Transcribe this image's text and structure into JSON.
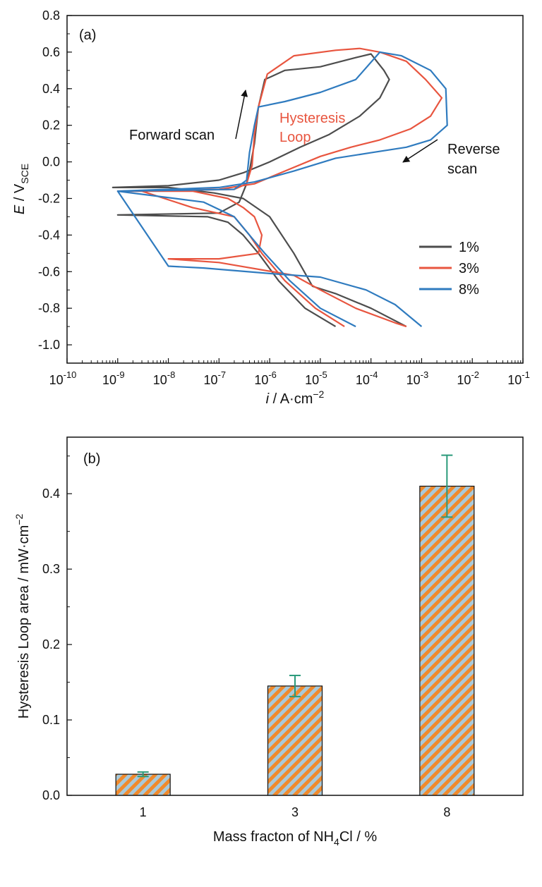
{
  "chart_data": [
    {
      "type": "line",
      "panel_label": "(a)",
      "xscale": "log",
      "xlim_exp": [
        -10,
        -1
      ],
      "x_tick_exponents": [
        -10,
        -9,
        -8,
        -7,
        -6,
        -5,
        -4,
        -3,
        -2,
        -1
      ],
      "x_tick_base": "10",
      "ylim": [
        -1.1,
        0.8
      ],
      "y_ticks": [
        "0.8",
        "0.6",
        "0.4",
        "0.2",
        "0.0",
        "-0.2",
        "-0.4",
        "-0.6",
        "-0.8",
        "-1.0"
      ],
      "xlabel": {
        "var": "i",
        "rest": " / A·cm",
        "sup": "−2"
      },
      "ylabel": {
        "var": "E",
        "rest": " / V",
        "sub": "SCE"
      },
      "annotations": {
        "forward": "Forward scan",
        "hysteresis_1": "Hysteresis",
        "hysteresis_2": "Loop",
        "reverse_1": "Reverse",
        "reverse_2": "scan"
      },
      "colors": {
        "1%": "#4d4d4d",
        "3%": "#e8553f",
        "8%": "#2f7bbf"
      },
      "series": [
        {
          "name": "1%",
          "color": "#4d4d4d",
          "points": [
            [
              2e-05,
              -0.9
            ],
            [
              5e-06,
              -0.8
            ],
            [
              1.5e-06,
              -0.65
            ],
            [
              6e-07,
              -0.5
            ],
            [
              3e-07,
              -0.4
            ],
            [
              1.5e-07,
              -0.33
            ],
            [
              6e-08,
              -0.3
            ],
            [
              1e-09,
              -0.29
            ],
            [
              1e-07,
              -0.28
            ],
            [
              2.5e-07,
              -0.22
            ],
            [
              3.5e-07,
              -0.12
            ],
            [
              4e-07,
              -0.05
            ],
            [
              5e-07,
              0.1
            ],
            [
              6e-07,
              0.3
            ],
            [
              8e-07,
              0.45
            ],
            [
              2e-06,
              0.5
            ],
            [
              1e-05,
              0.52
            ],
            [
              5e-05,
              0.57
            ],
            [
              0.0001,
              0.59
            ],
            [
              0.00013,
              0.55
            ],
            [
              0.00018,
              0.5
            ],
            [
              0.00023,
              0.45
            ],
            [
              0.00015,
              0.35
            ],
            [
              6e-05,
              0.25
            ],
            [
              1.5e-05,
              0.15
            ],
            [
              4e-06,
              0.08
            ],
            [
              1e-06,
              0.0
            ],
            [
              3e-07,
              -0.06
            ],
            [
              1e-07,
              -0.1
            ],
            [
              1e-08,
              -0.13
            ],
            [
              8e-10,
              -0.14
            ],
            [
              1e-08,
              -0.14
            ],
            [
              8e-08,
              -0.17
            ],
            [
              3e-07,
              -0.2
            ],
            [
              1e-06,
              -0.3
            ],
            [
              3e-06,
              -0.5
            ],
            [
              7e-06,
              -0.68
            ],
            [
              2e-05,
              -0.72
            ],
            [
              0.0001,
              -0.8
            ],
            [
              0.0005,
              -0.9
            ]
          ]
        },
        {
          "name": "3%",
          "color": "#e8553f",
          "points": [
            [
              3e-05,
              -0.9
            ],
            [
              8e-06,
              -0.8
            ],
            [
              2e-06,
              -0.65
            ],
            [
              7e-07,
              -0.5
            ],
            [
              4e-07,
              -0.4
            ],
            [
              2e-07,
              -0.3
            ],
            [
              3e-08,
              -0.25
            ],
            [
              3e-09,
              -0.16
            ],
            [
              2e-07,
              -0.15
            ],
            [
              3.5e-07,
              -0.12
            ],
            [
              4.5e-07,
              -0.02
            ],
            [
              5e-07,
              0.15
            ],
            [
              6e-07,
              0.3
            ],
            [
              9e-07,
              0.48
            ],
            [
              3e-06,
              0.58
            ],
            [
              2e-05,
              0.61
            ],
            [
              6e-05,
              0.62
            ],
            [
              0.00015,
              0.6
            ],
            [
              0.0005,
              0.55
            ],
            [
              0.0012,
              0.45
            ],
            [
              0.0025,
              0.35
            ],
            [
              0.0015,
              0.25
            ],
            [
              0.0006,
              0.18
            ],
            [
              0.00015,
              0.12
            ],
            [
              4e-05,
              0.08
            ],
            [
              1e-05,
              0.03
            ],
            [
              2e-06,
              -0.05
            ],
            [
              5e-07,
              -0.12
            ],
            [
              1e-07,
              -0.15
            ],
            [
              1e-09,
              -0.16
            ],
            [
              3e-08,
              -0.16
            ],
            [
              1.5e-07,
              -0.2
            ],
            [
              3e-07,
              -0.25
            ],
            [
              5e-07,
              -0.3
            ],
            [
              7e-07,
              -0.4
            ],
            [
              6e-07,
              -0.5
            ],
            [
              1e-07,
              -0.53
            ],
            [
              1e-08,
              -0.53
            ],
            [
              1e-07,
              -0.55
            ],
            [
              3e-06,
              -0.62
            ],
            [
              1e-05,
              -0.7
            ],
            [
              5e-05,
              -0.8
            ],
            [
              0.0003,
              -0.88
            ],
            [
              0.0005,
              -0.9
            ]
          ]
        },
        {
          "name": "8%",
          "color": "#2f7bbf",
          "points": [
            [
              5e-05,
              -0.9
            ],
            [
              1e-05,
              -0.8
            ],
            [
              2.5e-06,
              -0.65
            ],
            [
              8e-07,
              -0.5
            ],
            [
              4e-07,
              -0.4
            ],
            [
              2e-07,
              -0.3
            ],
            [
              5e-08,
              -0.22
            ],
            [
              1e-09,
              -0.16
            ],
            [
              2e-07,
              -0.15
            ],
            [
              3.5e-07,
              -0.1
            ],
            [
              4e-07,
              0.05
            ],
            [
              5e-07,
              0.2
            ],
            [
              6e-07,
              0.3
            ],
            [
              2e-06,
              0.33
            ],
            [
              1e-05,
              0.38
            ],
            [
              5e-05,
              0.45
            ],
            [
              0.00015,
              0.6
            ],
            [
              0.0004,
              0.58
            ],
            [
              0.0015,
              0.5
            ],
            [
              0.003,
              0.4
            ],
            [
              0.0032,
              0.2
            ],
            [
              0.0015,
              0.12
            ],
            [
              0.0005,
              0.08
            ],
            [
              0.0001,
              0.05
            ],
            [
              2e-05,
              0.02
            ],
            [
              3e-06,
              -0.05
            ],
            [
              5e-07,
              -0.11
            ],
            [
              1e-07,
              -0.14
            ],
            [
              1e-09,
              -0.16
            ],
            [
              1e-08,
              -0.57
            ],
            [
              5e-08,
              -0.58
            ],
            [
              1e-06,
              -0.61
            ],
            [
              1e-05,
              -0.63
            ],
            [
              8e-05,
              -0.7
            ],
            [
              0.0003,
              -0.78
            ],
            [
              0.001,
              -0.9
            ]
          ]
        }
      ],
      "legend": {
        "placement": "right-middle",
        "entries": [
          "1%",
          "3%",
          "8%"
        ]
      }
    },
    {
      "type": "bar",
      "panel_label": "(b)",
      "categories": [
        "1",
        "3",
        "8"
      ],
      "values": [
        0.028,
        0.145,
        0.41
      ],
      "errors": [
        0.003,
        0.014,
        0.041
      ],
      "ylim": [
        0,
        0.475
      ],
      "y_ticks": [
        "0.0",
        "0.1",
        "0.2",
        "0.3",
        "0.4"
      ],
      "xlabel": {
        "pre": "Mass fracton of NH",
        "sub": "4",
        "post": "Cl / %"
      },
      "ylabel": {
        "pre": "Hysteresis Loop area / mW·cm",
        "sup": "−2"
      },
      "colors": {
        "stripe_a": "#f08a2c",
        "stripe_b": "#a9c9d9",
        "error_bar": "#2a9a7a"
      }
    }
  ]
}
